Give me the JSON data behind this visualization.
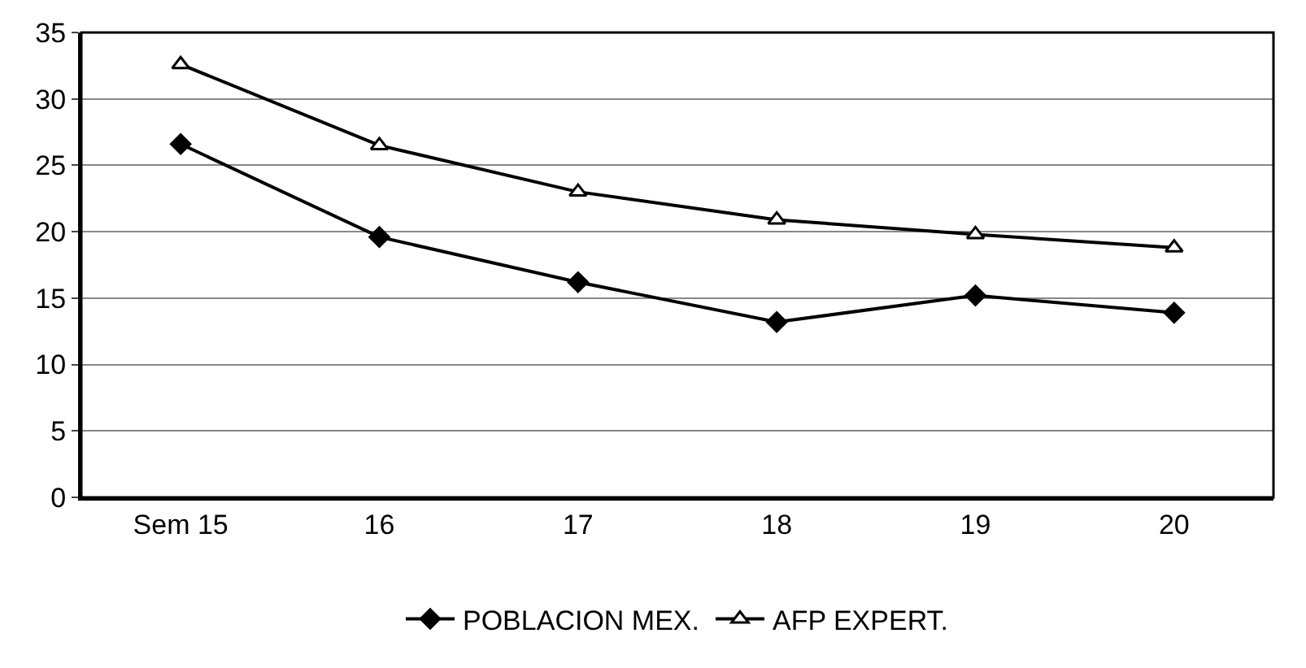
{
  "chart_data": {
    "type": "line",
    "categories": [
      "Sem 15",
      "16",
      "17",
      "18",
      "19",
      "20"
    ],
    "series": [
      {
        "name": "POBLACION MEX.",
        "color": "#000000",
        "marker": "diamond",
        "values": [
          26.6,
          19.6,
          16.2,
          13.2,
          15.2,
          13.9
        ]
      },
      {
        "name": "AFP EXPERT.",
        "color": "#000000",
        "marker": "triangle",
        "values": [
          32.6,
          26.5,
          23.0,
          20.9,
          19.8,
          18.8
        ]
      }
    ],
    "ylim": [
      0,
      35
    ],
    "yticks": [
      0,
      5,
      10,
      15,
      20,
      25,
      30,
      35
    ],
    "grid": "y",
    "legend": "bottom",
    "line_style": "solid"
  }
}
